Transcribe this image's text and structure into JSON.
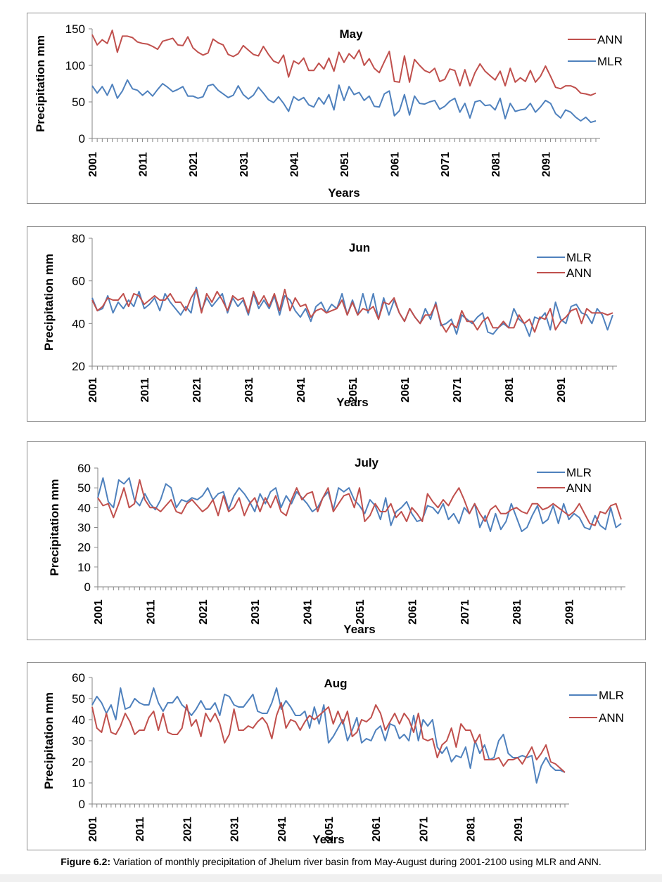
{
  "chart_data": [
    {
      "type": "line",
      "title": "May",
      "xlabel": "Years",
      "ylabel": "Precipitation mm",
      "ylim": [
        0,
        150
      ],
      "yticks": [
        0,
        50,
        100,
        150
      ],
      "xtick_labels": [
        "2001",
        "2011",
        "2021",
        "2031",
        "2041",
        "2051",
        "2061",
        "2071",
        "2081",
        "2091"
      ],
      "legend_position": "top-right",
      "series": [
        {
          "name": "ANN",
          "color": "#c0504d",
          "values": [
            142,
            128,
            135,
            130,
            148,
            118,
            140,
            140,
            138,
            132,
            130,
            129,
            126,
            122,
            133,
            135,
            137,
            128,
            127,
            139,
            124,
            118,
            114,
            117,
            136,
            131,
            128,
            115,
            112,
            116,
            127,
            121,
            115,
            113,
            126,
            115,
            106,
            103,
            114,
            84,
            106,
            102,
            110,
            93,
            93,
            103,
            95,
            110,
            92,
            118,
            104,
            116,
            109,
            121,
            100,
            109,
            96,
            90,
            105,
            119,
            78,
            77,
            113,
            77,
            108,
            100,
            93,
            90,
            96,
            78,
            81,
            95,
            93,
            72,
            94,
            72,
            90,
            102,
            92,
            86,
            80,
            92,
            72,
            96,
            77,
            83,
            78,
            93,
            77,
            85,
            99,
            85,
            70,
            68,
            72,
            72,
            69,
            62,
            61,
            59,
            62
          ]
        },
        {
          "name": "MLR",
          "color": "#4f81bd",
          "values": [
            72,
            62,
            71,
            59,
            74,
            55,
            65,
            80,
            68,
            66,
            59,
            65,
            58,
            67,
            75,
            70,
            64,
            67,
            71,
            58,
            58,
            55,
            57,
            72,
            74,
            66,
            61,
            56,
            59,
            72,
            60,
            54,
            59,
            70,
            62,
            53,
            49,
            57,
            48,
            37,
            57,
            52,
            56,
            46,
            43,
            56,
            47,
            60,
            39,
            73,
            52,
            71,
            60,
            63,
            52,
            58,
            44,
            43,
            61,
            65,
            31,
            38,
            60,
            32,
            58,
            48,
            47,
            50,
            52,
            40,
            44,
            51,
            55,
            36,
            48,
            28,
            50,
            52,
            45,
            46,
            39,
            55,
            27,
            48,
            37,
            39,
            40,
            48,
            36,
            43,
            52,
            48,
            34,
            28,
            39,
            36,
            29,
            24,
            29,
            22,
            24
          ]
        }
      ]
    },
    {
      "type": "line",
      "title": "Jun",
      "xlabel": "Years",
      "ylabel": "Precipitation mm",
      "ylim": [
        20,
        80
      ],
      "yticks": [
        20,
        40,
        60,
        80
      ],
      "xtick_labels": [
        "2001",
        "2011",
        "2021",
        "2031",
        "2041",
        "2051",
        "2061",
        "2071",
        "2081",
        "2091"
      ],
      "legend_position": "top-right",
      "series": [
        {
          "name": "MLR",
          "color": "#4f81bd",
          "values": [
            52,
            46,
            47,
            53,
            45,
            50,
            47,
            51,
            48,
            55,
            47,
            49,
            52,
            46,
            54,
            50,
            47,
            44,
            48,
            45,
            57,
            46,
            52,
            48,
            51,
            54,
            45,
            52,
            48,
            51,
            44,
            54,
            47,
            51,
            47,
            53,
            44,
            53,
            51,
            46,
            43,
            47,
            41,
            48,
            50,
            45,
            49,
            47,
            54,
            44,
            51,
            44,
            54,
            45,
            54,
            42,
            52,
            44,
            51,
            45,
            41,
            47,
            43,
            40,
            47,
            42,
            50,
            39,
            40,
            42,
            35,
            44,
            42,
            40,
            43,
            45,
            36,
            35,
            38,
            40,
            38,
            47,
            42,
            40,
            34,
            43,
            42,
            45,
            37,
            50,
            42,
            40,
            48,
            49,
            45,
            44,
            40,
            47,
            44,
            37,
            44
          ]
        },
        {
          "name": "ANN",
          "color": "#c0504d",
          "values": [
            51,
            46,
            48,
            52,
            51,
            51,
            54,
            48,
            54,
            53,
            49,
            51,
            53,
            51,
            51,
            54,
            50,
            50,
            46,
            52,
            56,
            45,
            54,
            50,
            55,
            51,
            46,
            53,
            51,
            52,
            45,
            55,
            49,
            53,
            48,
            54,
            46,
            56,
            46,
            52,
            48,
            49,
            43,
            46,
            47,
            45,
            46,
            47,
            51,
            44,
            50,
            44,
            47,
            46,
            48,
            42,
            50,
            49,
            52,
            45,
            41,
            47,
            43,
            40,
            44,
            44,
            49,
            40,
            36,
            40,
            38,
            46,
            41,
            41,
            37,
            41,
            43,
            38,
            38,
            41,
            38,
            38,
            44,
            40,
            42,
            36,
            43,
            42,
            47,
            37,
            41,
            43,
            46,
            47,
            40,
            47,
            45,
            45,
            45,
            44,
            45
          ]
        }
      ]
    },
    {
      "type": "line",
      "title": "July",
      "xlabel": "Years",
      "ylabel": "Precipitation mm",
      "ylim": [
        0,
        60
      ],
      "yticks": [
        0,
        10,
        20,
        30,
        40,
        50,
        60
      ],
      "xtick_labels": [
        "2001",
        "2011",
        "2021",
        "2031",
        "2041",
        "2051",
        "2061",
        "2071",
        "2081",
        "2091"
      ],
      "legend_position": "top-right",
      "series": [
        {
          "name": "MLR",
          "color": "#4f81bd",
          "values": [
            45,
            55,
            43,
            40,
            54,
            52,
            55,
            44,
            41,
            47,
            42,
            39,
            44,
            52,
            50,
            40,
            44,
            43,
            45,
            44,
            46,
            50,
            44,
            47,
            48,
            39,
            46,
            50,
            47,
            43,
            38,
            47,
            42,
            48,
            50,
            40,
            46,
            42,
            48,
            45,
            42,
            38,
            40,
            45,
            48,
            39,
            50,
            48,
            50,
            44,
            41,
            37,
            44,
            41,
            34,
            45,
            31,
            38,
            40,
            43,
            37,
            33,
            34,
            41,
            40,
            37,
            42,
            34,
            37,
            32,
            40,
            37,
            42,
            30,
            36,
            28,
            37,
            29,
            33,
            42,
            35,
            28,
            30,
            36,
            41,
            32,
            34,
            41,
            32,
            42,
            34,
            37,
            35,
            30,
            29,
            36,
            31,
            29,
            40,
            30,
            32
          ]
        },
        {
          "name": "ANN",
          "color": "#c0504d",
          "values": [
            45,
            41,
            42,
            35,
            42,
            50,
            40,
            42,
            54,
            44,
            40,
            40,
            38,
            41,
            44,
            38,
            37,
            42,
            44,
            41,
            38,
            40,
            44,
            36,
            46,
            38,
            40,
            45,
            36,
            42,
            45,
            38,
            45,
            40,
            46,
            38,
            36,
            44,
            50,
            44,
            47,
            48,
            38,
            45,
            50,
            38,
            42,
            46,
            47,
            40,
            50,
            33,
            36,
            42,
            38,
            38,
            42,
            35,
            38,
            33,
            40,
            37,
            33,
            47,
            43,
            40,
            44,
            41,
            46,
            50,
            44,
            37,
            42,
            37,
            33,
            39,
            41,
            37,
            37,
            39,
            40,
            38,
            37,
            42,
            42,
            39,
            40,
            42,
            40,
            38,
            36,
            38,
            42,
            37,
            32,
            31,
            38,
            37,
            41,
            42,
            34
          ]
        }
      ]
    },
    {
      "type": "line",
      "title": "Aug",
      "xlabel": "Years",
      "ylabel": "Precipitation mm",
      "ylim": [
        0,
        60
      ],
      "yticks": [
        0,
        10,
        20,
        30,
        40,
        50,
        60
      ],
      "xtick_labels": [
        "2001",
        "2011",
        "2021",
        "2031",
        "2041",
        "2051",
        "2061",
        "2071",
        "2081",
        "2091"
      ],
      "legend_position": "top-right",
      "series": [
        {
          "name": "MLR",
          "color": "#4f81bd",
          "values": [
            47,
            51,
            48,
            43,
            47,
            40,
            55,
            45,
            46,
            50,
            48,
            47,
            47,
            55,
            48,
            44,
            48,
            48,
            51,
            47,
            45,
            42,
            45,
            49,
            45,
            45,
            48,
            42,
            52,
            51,
            47,
            46,
            46,
            49,
            52,
            44,
            43,
            43,
            48,
            55,
            45,
            49,
            46,
            42,
            42,
            44,
            36,
            46,
            38,
            47,
            29,
            32,
            36,
            40,
            30,
            35,
            41,
            29,
            31,
            30,
            35,
            37,
            30,
            38,
            37,
            31,
            33,
            30,
            42,
            30,
            40,
            37,
            40,
            27,
            24,
            27,
            20,
            23,
            22,
            27,
            17,
            30,
            24,
            28,
            21,
            22,
            30,
            33,
            24,
            22,
            22,
            23,
            22,
            23,
            10,
            18,
            22,
            18,
            16,
            16,
            15
          ]
        },
        {
          "name": "ANN",
          "color": "#c0504d",
          "values": [
            46,
            36,
            34,
            43,
            34,
            33,
            37,
            43,
            39,
            33,
            35,
            35,
            41,
            44,
            35,
            43,
            34,
            33,
            33,
            36,
            47,
            37,
            40,
            32,
            43,
            39,
            43,
            38,
            29,
            33,
            45,
            35,
            35,
            37,
            36,
            39,
            41,
            38,
            31,
            42,
            48,
            36,
            40,
            39,
            35,
            39,
            42,
            40,
            42,
            44,
            46,
            38,
            44,
            38,
            44,
            32,
            34,
            40,
            39,
            41,
            47,
            43,
            35,
            39,
            43,
            38,
            43,
            40,
            34,
            43,
            31,
            30,
            31,
            22,
            28,
            30,
            36,
            27,
            38,
            35,
            35,
            29,
            33,
            21,
            21,
            21,
            22,
            18,
            21,
            21,
            22,
            19,
            23,
            27,
            21,
            24,
            28,
            20,
            19,
            17,
            15
          ]
        }
      ]
    }
  ],
  "caption": {
    "label": "Figure 6.2:",
    "text": " Variation of monthly precipitation of Jhelum river basin from May-August during 2001-2100 using MLR and ANN."
  }
}
